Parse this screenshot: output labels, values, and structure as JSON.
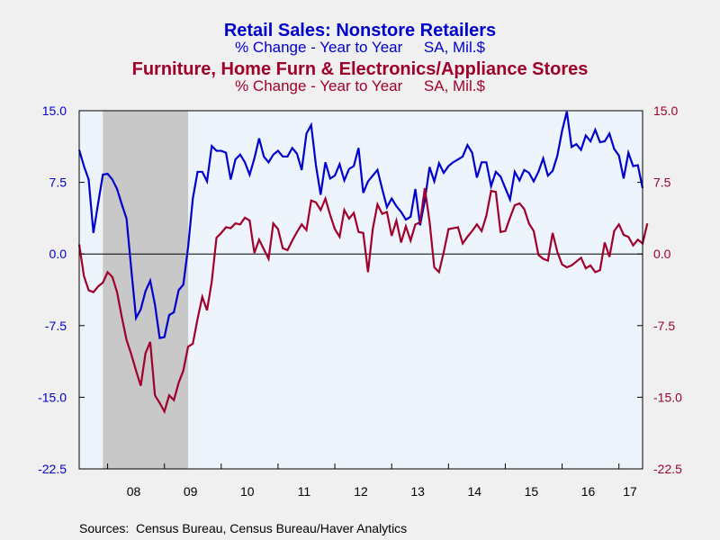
{
  "chart_data": {
    "type": "line",
    "title_1": "Retail Sales: Nonstore Retailers",
    "subtitle_1": "% Change - Year to Year     SA, Mil.$",
    "title_2": "Furniture, Home Furn & Electronics/Appliance Stores",
    "subtitle_2": "% Change - Year to Year     SA, Mil.$",
    "source": "Sources:  Census Bureau, Census Bureau/Haver Analytics",
    "ylim": [
      -22.5,
      15.0
    ],
    "y_ticks": [
      "15.0",
      "7.5",
      "0.0",
      "-7.5",
      "-15.0",
      "-22.5"
    ],
    "x_ticks": [
      "08",
      "09",
      "10",
      "11",
      "12",
      "13",
      "14",
      "15",
      "16",
      "17"
    ],
    "x_start": "2007-07",
    "recession": {
      "start": "2007-12",
      "end": "2009-06"
    },
    "grid": false,
    "legend": "none",
    "colors": {
      "series_1": "#0000cc",
      "series_2": "#a0002a",
      "recession": "#c8c8c8",
      "plot_bg": "#eef4fc",
      "zero_line": "#000000"
    },
    "series": [
      {
        "name": "Retail Sales: Nonstore Retailers",
        "axis": "left",
        "values": [
          10.9,
          9.2,
          7.8,
          2.2,
          5.3,
          8.3,
          8.4,
          7.8,
          6.8,
          5.2,
          3.7,
          -1.6,
          -6.7,
          -5.8,
          -3.9,
          -2.8,
          -5.3,
          -8.8,
          -8.7,
          -6.4,
          -6.1,
          -3.8,
          -3.2,
          0.7,
          5.8,
          8.6,
          8.6,
          7.6,
          11.3,
          10.8,
          10.8,
          10.6,
          7.8,
          9.9,
          10.4,
          9.6,
          8.3,
          10.0,
          12.1,
          10.2,
          9.6,
          10.4,
          10.8,
          10.2,
          10.2,
          11.1,
          10.5,
          8.8,
          12.6,
          13.5,
          9.3,
          6.2,
          9.6,
          7.9,
          8.2,
          9.4,
          7.7,
          8.9,
          9.2,
          11.1,
          6.4,
          7.6,
          8.2,
          8.8,
          6.8,
          4.9,
          5.8,
          5.0,
          4.4,
          3.6,
          3.9,
          6.8,
          3.0,
          5.6,
          9.1,
          7.6,
          9.5,
          8.5,
          9.2,
          9.6,
          9.9,
          10.2,
          11.4,
          10.6,
          8.0,
          9.6,
          9.6,
          7.1,
          8.6,
          8.1,
          6.9,
          5.7,
          8.6,
          7.7,
          8.8,
          8.5,
          7.6,
          8.6,
          10.0,
          8.2,
          8.7,
          10.3,
          12.9,
          14.9,
          11.2,
          11.5,
          10.9,
          12.4,
          11.8,
          13.0,
          11.7,
          11.8,
          12.6,
          11.0,
          10.3,
          7.9,
          10.6,
          9.2,
          9.3,
          6.9
        ]
      },
      {
        "name": "Furniture, Home Furn & Electronics/Appliance Stores",
        "axis": "right",
        "values": [
          1.0,
          -2.3,
          -3.8,
          -4.0,
          -3.4,
          -3.0,
          -1.9,
          -2.4,
          -4.0,
          -6.6,
          -9.0,
          -10.5,
          -12.2,
          -13.8,
          -10.4,
          -9.2,
          -14.8,
          -15.6,
          -16.5,
          -14.8,
          -15.3,
          -13.5,
          -12.2,
          -9.7,
          -9.4,
          -6.8,
          -4.5,
          -5.9,
          -2.9,
          1.7,
          2.2,
          2.8,
          2.7,
          3.2,
          3.1,
          3.8,
          3.5,
          0.1,
          1.5,
          0.5,
          -0.5,
          3.2,
          2.6,
          0.6,
          0.4,
          1.4,
          2.3,
          3.1,
          2.5,
          5.6,
          5.4,
          4.6,
          5.8,
          4.1,
          2.6,
          1.8,
          4.6,
          3.7,
          4.3,
          2.3,
          2.2,
          -1.9,
          2.6,
          5.2,
          4.2,
          4.4,
          1.9,
          3.5,
          1.2,
          2.9,
          1.4,
          3.1,
          3.3,
          6.9,
          3.4,
          -1.4,
          -1.9,
          0.2,
          2.6,
          2.7,
          2.8,
          1.1,
          1.8,
          2.4,
          3.1,
          2.4,
          4.0,
          6.6,
          6.5,
          2.3,
          2.4,
          3.8,
          5.1,
          5.3,
          4.7,
          3.2,
          2.4,
          -0.1,
          -0.5,
          -0.7,
          2.2,
          0.2,
          -1.1,
          -1.4,
          -1.2,
          -0.8,
          -0.4,
          -1.5,
          -1.2,
          -1.9,
          -1.7,
          1.2,
          -0.3,
          2.4,
          3.1,
          2.0,
          1.8,
          0.9,
          1.5,
          1.1,
          3.2
        ]
      }
    ]
  }
}
